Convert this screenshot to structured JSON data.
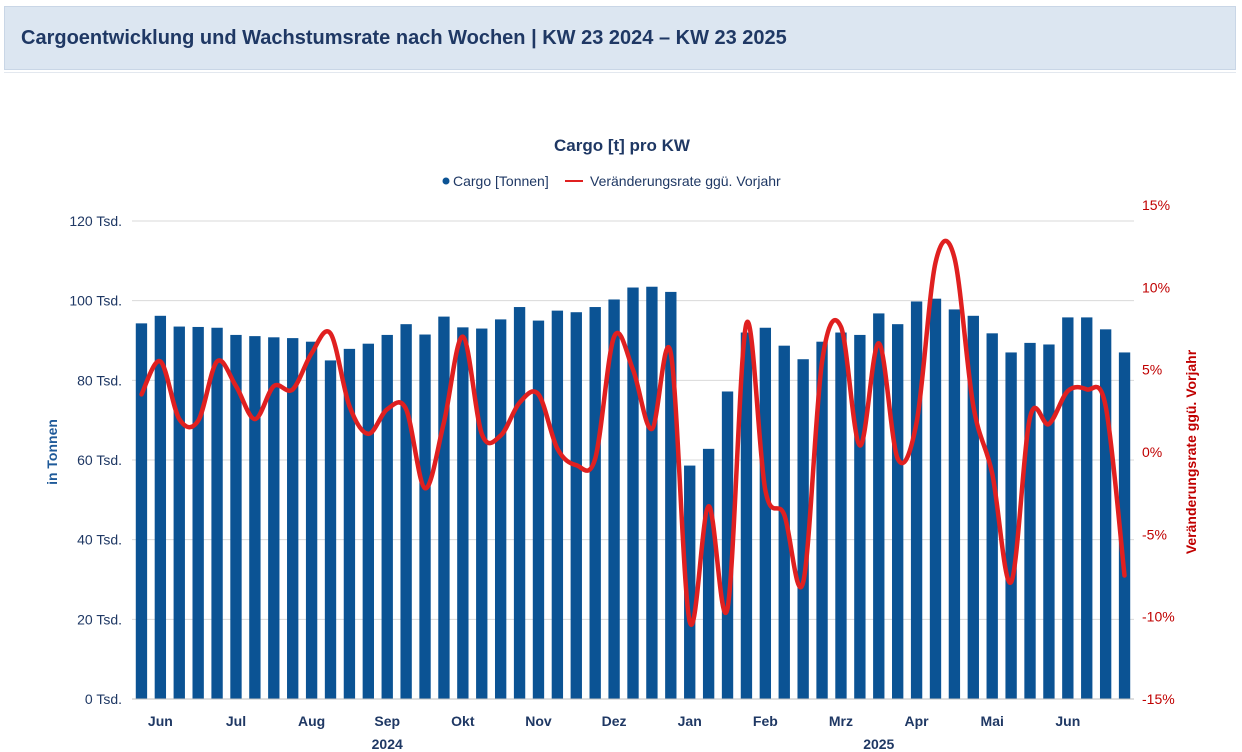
{
  "header": {
    "title": "Cargoentwicklung und Wachstumsrate nach Wochen | KW 23 2024 – KW 23 2025"
  },
  "chart_data": {
    "type": "bar",
    "title": "Cargo [t] pro KW",
    "ylabel": "in Tonnen",
    "y2label": "Veränderungsrate ggü. Vorjahr",
    "ylim": [
      0,
      120000
    ],
    "y2lim": [
      -15,
      15
    ],
    "yticks": [
      "0 Tsd.",
      "20 Tsd.",
      "40 Tsd.",
      "60 Tsd.",
      "80 Tsd.",
      "100 Tsd.",
      "120 Tsd."
    ],
    "y2ticks": [
      "-15%",
      "-10%",
      "-5%",
      "0%",
      "5%",
      "10%",
      "15%"
    ],
    "grid": true,
    "legend_position": "top",
    "month_labels": [
      {
        "label": "Jun",
        "week_index": 1
      },
      {
        "label": "Jul",
        "week_index": 5
      },
      {
        "label": "Aug",
        "week_index": 9
      },
      {
        "label": "Sep",
        "week_index": 13
      },
      {
        "label": "Okt",
        "week_index": 17
      },
      {
        "label": "Nov",
        "week_index": 21
      },
      {
        "label": "Dez",
        "week_index": 25
      },
      {
        "label": "Jan",
        "week_index": 29
      },
      {
        "label": "Feb",
        "week_index": 33
      },
      {
        "label": "Mrz",
        "week_index": 37
      },
      {
        "label": "Apr",
        "week_index": 41
      },
      {
        "label": "Mai",
        "week_index": 45
      },
      {
        "label": "Jun",
        "week_index": 49
      }
    ],
    "year_labels": [
      {
        "label": "2024",
        "week_index": 13
      },
      {
        "label": "2025",
        "week_index": 39
      }
    ],
    "series": [
      {
        "name": "Cargo [Tonnen]",
        "type": "bar",
        "axis": "left",
        "color": "#0b5394",
        "values": [
          94300,
          96200,
          93500,
          93400,
          93200,
          91400,
          91100,
          90800,
          90600,
          89700,
          85000,
          87900,
          89200,
          91400,
          94100,
          91500,
          96000,
          93300,
          93000,
          95300,
          98400,
          95000,
          97500,
          97100,
          98400,
          100300,
          103300,
          103500,
          102200,
          58600,
          62800,
          77200,
          92000,
          93200,
          88700,
          85300,
          89700,
          92000,
          91400,
          96800,
          94100,
          99800,
          100500,
          97800,
          96200,
          91800,
          87000,
          89400,
          89000,
          95800,
          95800,
          92800,
          87000
        ]
      },
      {
        "name": "Veränderungsrate ggü. Vorjahr",
        "type": "line",
        "axis": "right",
        "color": "#e02020",
        "values": [
          3.5,
          5.5,
          2.0,
          1.9,
          5.5,
          4.0,
          2.0,
          4.0,
          3.8,
          6.0,
          7.2,
          2.8,
          1.1,
          2.6,
          2.6,
          -2.2,
          1.8,
          7.0,
          1.1,
          1.0,
          3.0,
          3.5,
          0.2,
          -0.8,
          -0.4,
          7.0,
          5.0,
          1.4,
          6.0,
          -10.3,
          -3.3,
          -9.5,
          7.8,
          -2.3,
          -3.8,
          -7.9,
          5.5,
          7.6,
          0.4,
          6.6,
          -0.4,
          1.8,
          11.5,
          11.8,
          2.8,
          -1.3,
          -7.9,
          2.1,
          1.7,
          3.7,
          3.8,
          2.8,
          -7.5
        ]
      }
    ]
  }
}
